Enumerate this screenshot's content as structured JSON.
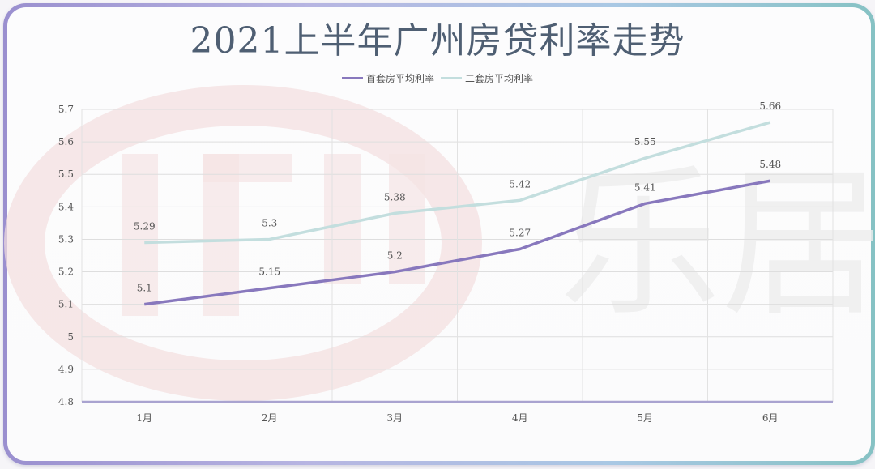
{
  "title": "2021上半年广州房贷利率走势",
  "legend": [
    {
      "label": "首套房平均利率",
      "color": "#8878bd"
    },
    {
      "label": "二套房平均利率",
      "color": "#c3dede"
    }
  ],
  "watermark": {
    "text": "乐居",
    "logo": "LEJU"
  },
  "chart_data": {
    "type": "line",
    "title": "2021上半年广州房贷利率走势",
    "xlabel": "",
    "ylabel": "",
    "categories": [
      "1月",
      "2月",
      "3月",
      "4月",
      "5月",
      "6月"
    ],
    "series": [
      {
        "name": "首套房平均利率",
        "color": "#8878bd",
        "values": [
          5.1,
          5.15,
          5.2,
          5.27,
          5.41,
          5.48
        ]
      },
      {
        "name": "二套房平均利率",
        "color": "#c3dede",
        "values": [
          5.29,
          5.3,
          5.38,
          5.42,
          5.55,
          5.66
        ]
      }
    ],
    "ylim": [
      4.8,
      5.7
    ],
    "yticks": [
      "5.7",
      "5.6",
      "5.5",
      "5.4",
      "5.3",
      "5.2",
      "5.1",
      "5",
      "4.9",
      "4.8"
    ],
    "grid": true,
    "legend_position": "top",
    "data_labels": true
  }
}
